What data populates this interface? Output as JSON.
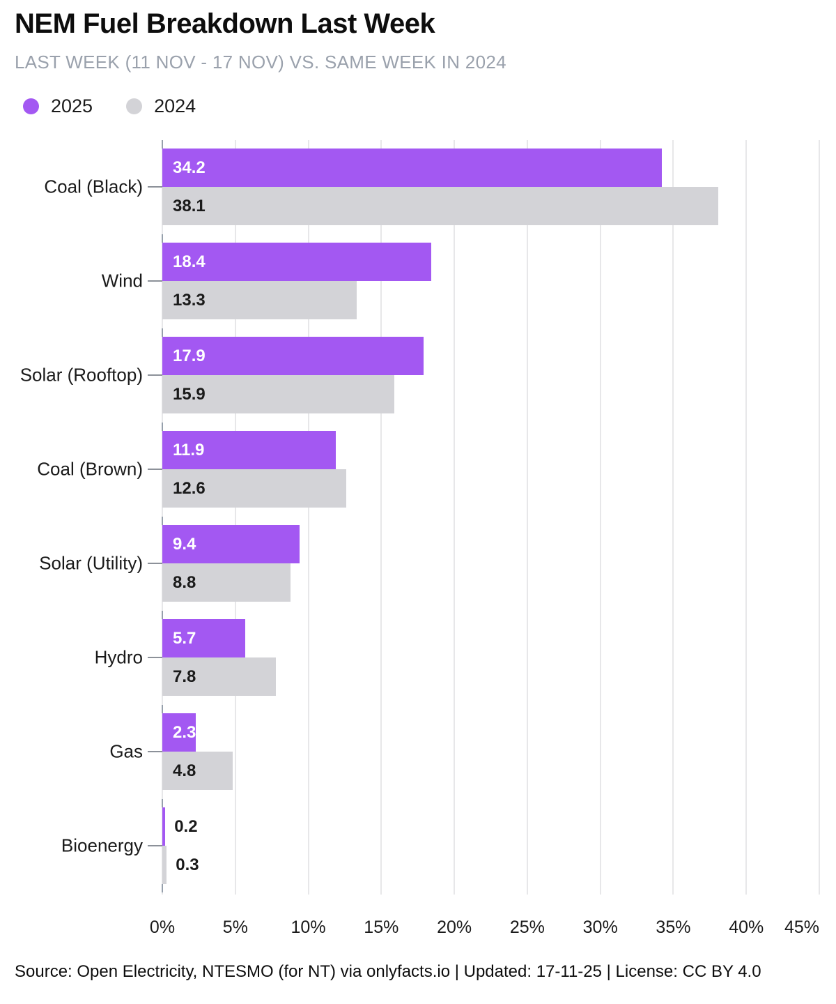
{
  "header": {
    "title": "NEM Fuel Breakdown Last Week",
    "subtitle": "LAST WEEK (11 NOV - 17 NOV) VS. SAME WEEK IN 2024"
  },
  "legend": [
    {
      "label": "2025",
      "color": "#a358f2"
    },
    {
      "label": "2024",
      "color": "#d3d3d7"
    }
  ],
  "chart_data": {
    "type": "bar",
    "orientation": "horizontal",
    "title": "NEM Fuel Breakdown Last Week",
    "subtitle": "LAST WEEK (11 NOV - 17 NOV) VS. SAME WEEK IN 2024",
    "categories": [
      "Coal (Black)",
      "Wind",
      "Solar (Rooftop)",
      "Coal (Brown)",
      "Solar (Utility)",
      "Hydro",
      "Gas",
      "Bioenergy"
    ],
    "series": [
      {
        "name": "2025",
        "color": "#a358f2",
        "label_color_inside": "#ffffff",
        "values": [
          34.2,
          18.4,
          17.9,
          11.9,
          9.4,
          5.7,
          2.3,
          0.2
        ]
      },
      {
        "name": "2024",
        "color": "#d3d3d7",
        "label_color_inside": "#1a1a1a",
        "values": [
          38.1,
          13.3,
          15.9,
          12.6,
          8.8,
          7.8,
          4.8,
          0.3
        ]
      }
    ],
    "xlabel": "",
    "ylabel": "",
    "xlim": [
      0,
      45
    ],
    "x_ticks": [
      "0%",
      "5%",
      "10%",
      "15%",
      "20%",
      "25%",
      "30%",
      "35%",
      "40%",
      "45%"
    ],
    "grid": true,
    "legend_position": "top-left",
    "value_format_decimals": 1
  },
  "footer": {
    "source": "Source: Open Electricity, NTESMO (for NT) via onlyfacts.io | Updated: 17-11-25 | License: CC BY 4.0"
  }
}
